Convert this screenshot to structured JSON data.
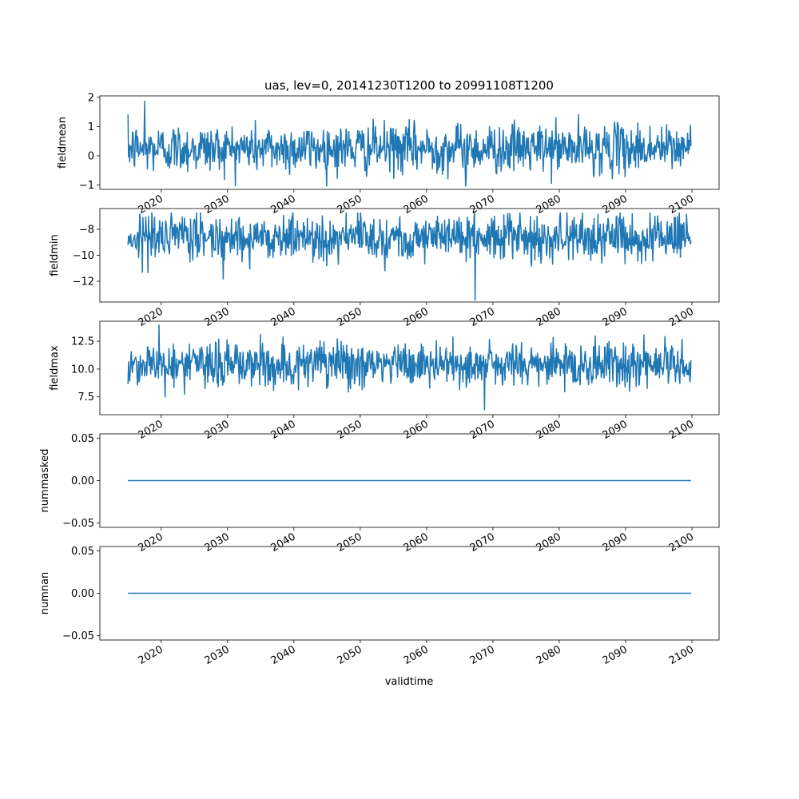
{
  "chart_data": {
    "type": "line",
    "title": "uas, lev=0, 20141230T1200 to 20991108T1200",
    "xlabel": "validtime",
    "x_start": "2014-12-30",
    "x_end": "2099-11-08",
    "x_ticks": [
      "2020",
      "2030",
      "2040",
      "2050",
      "2060",
      "2070",
      "2080",
      "2090",
      "2100"
    ],
    "line_color": "#1f77b4",
    "panels": [
      {
        "ylabel": "fieldmean",
        "ylim": [
          -1.15,
          2.05
        ],
        "yticks": [
          -1,
          0,
          1,
          2
        ],
        "ytick_labels": [
          "−1",
          "0",
          "1",
          "2"
        ],
        "mean": 0.25,
        "amplitude": 0.42,
        "min": -1.05,
        "max": 1.88
      },
      {
        "ylabel": "fieldmin",
        "ylim": [
          -13.6,
          -6.4
        ],
        "yticks": [
          -12,
          -10,
          -8
        ],
        "ytick_labels": [
          "−12",
          "−10",
          "−8"
        ],
        "mean": -8.6,
        "amplitude": 0.9,
        "min": -13.5,
        "max": -6.7
      },
      {
        "ylabel": "fieldmax",
        "ylim": [
          5.9,
          14.3
        ],
        "yticks": [
          7.5,
          10.0,
          12.5
        ],
        "ytick_labels": [
          "7.5",
          "10.0",
          "12.5"
        ],
        "mean": 10.4,
        "amplitude": 1.05,
        "min": 6.3,
        "max": 14.0
      },
      {
        "ylabel": "nummasked",
        "ylim": [
          -0.055,
          0.055
        ],
        "yticks": [
          -0.05,
          0.0,
          0.05
        ],
        "ytick_labels": [
          "−0.05",
          "0.00",
          "0.05"
        ],
        "mean": 0.0,
        "amplitude": 0,
        "min": 0,
        "max": 0
      },
      {
        "ylabel": "numnan",
        "ylim": [
          -0.055,
          0.055
        ],
        "yticks": [
          -0.05,
          0.0,
          0.05
        ],
        "ytick_labels": [
          "−0.05",
          "0.00",
          "0.05"
        ],
        "mean": 0.0,
        "amplitude": 0,
        "min": 0,
        "max": 0
      }
    ]
  }
}
